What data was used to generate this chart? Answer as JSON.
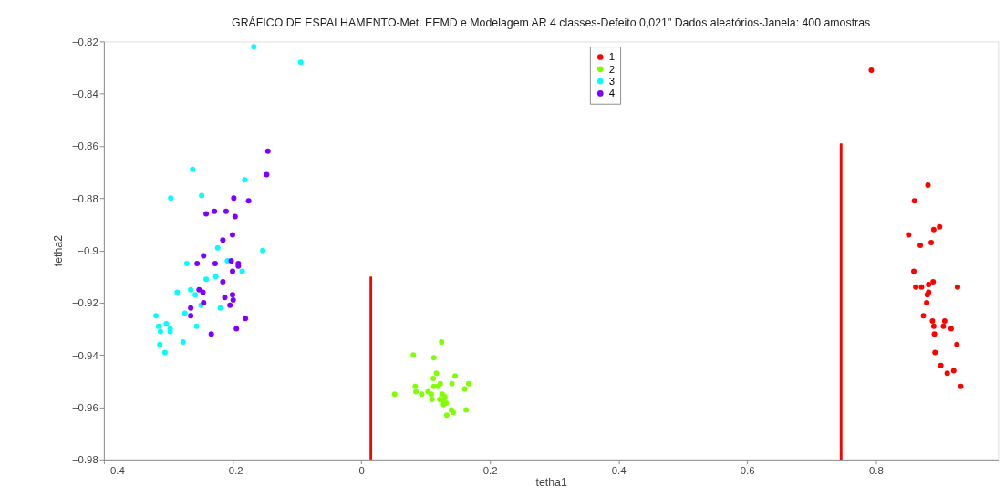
{
  "chart_data": {
    "type": "scatter",
    "title": "GRÁFICO DE ESPALHAMENTO-Met. EEMD e Modelagem AR 4 classes-Defeito 0,021\" Dados aleatórios-Janela: 400 amostras",
    "xlabel": "tetha1",
    "ylabel": "tetha2",
    "xlim": [
      -0.4,
      0.99
    ],
    "ylim": [
      -0.98,
      -0.82
    ],
    "xticks": [
      -0.4,
      -0.2,
      0,
      0.2,
      0.4,
      0.6,
      0.8
    ],
    "yticks": [
      -0.98,
      -0.96,
      -0.94,
      -0.92,
      -0.9,
      -0.88,
      -0.86,
      -0.84,
      -0.82
    ],
    "grid": false,
    "legend": "top",
    "marker": "circle",
    "series": [
      {
        "name": "1",
        "color": "#ff0000",
        "x": [
          0.793,
          0.881,
          0.86,
          0.851,
          0.899,
          0.89,
          0.886,
          0.869,
          0.859,
          0.862,
          0.871,
          0.882,
          0.889,
          0.882,
          0.88,
          0.927,
          0.879,
          0.874,
          0.888,
          0.907,
          0.89,
          0.905,
          0.917,
          0.891,
          0.926,
          0.892,
          0.901,
          0.911,
          0.921,
          0.932
        ],
        "values": [
          -0.831,
          -0.875,
          -0.881,
          -0.894,
          -0.891,
          -0.892,
          -0.897,
          -0.898,
          -0.908,
          -0.914,
          -0.914,
          -0.913,
          -0.912,
          -0.916,
          -0.917,
          -0.914,
          -0.92,
          -0.925,
          -0.927,
          -0.927,
          -0.929,
          -0.929,
          -0.93,
          -0.932,
          -0.936,
          -0.939,
          -0.944,
          -0.947,
          -0.946,
          -0.952
        ]
      },
      {
        "name": "2",
        "color": "#80ff00",
        "x": [
          0.125,
          0.081,
          0.113,
          0.117,
          0.146,
          0.112,
          0.123,
          0.119,
          0.141,
          0.167,
          0.084,
          0.113,
          0.085,
          0.161,
          0.052,
          0.094,
          0.104,
          0.109,
          0.126,
          0.13,
          0.122,
          0.11,
          0.128,
          0.132,
          0.128,
          0.14,
          0.143,
          0.163,
          0.133
        ],
        "values": [
          -0.935,
          -0.94,
          -0.941,
          -0.947,
          -0.948,
          -0.949,
          -0.951,
          -0.952,
          -0.951,
          -0.951,
          -0.952,
          -0.952,
          -0.954,
          -0.953,
          -0.955,
          -0.955,
          -0.954,
          -0.955,
          -0.955,
          -0.956,
          -0.957,
          -0.957,
          -0.9577,
          -0.9584,
          -0.959,
          -0.961,
          -0.962,
          -0.961,
          -0.963
        ]
      },
      {
        "name": "3",
        "color": "#00ffff",
        "x": [
          -0.262,
          -0.181,
          -0.296,
          -0.248,
          -0.223,
          -0.153,
          -0.271,
          -0.208,
          -0.185,
          -0.241,
          -0.226,
          -0.286,
          -0.265,
          -0.258,
          -0.249,
          -0.219,
          -0.274,
          -0.319,
          -0.303,
          -0.315,
          -0.297,
          -0.312,
          -0.297,
          -0.256,
          -0.277,
          -0.313,
          -0.305,
          -0.167,
          -0.094
        ],
        "values": [
          -0.869,
          -0.873,
          -0.88,
          -0.879,
          -0.899,
          -0.9,
          -0.905,
          -0.904,
          -0.908,
          -0.911,
          -0.91,
          -0.916,
          -0.915,
          -0.917,
          -0.921,
          -0.922,
          -0.924,
          -0.925,
          -0.928,
          -0.929,
          -0.93,
          -0.931,
          -0.931,
          -0.929,
          -0.935,
          -0.936,
          -0.939,
          -0.822,
          -0.828
        ]
      },
      {
        "name": "4",
        "color": "#8000ff",
        "x": [
          -0.145,
          -0.147,
          -0.198,
          -0.175,
          -0.241,
          -0.228,
          -0.21,
          -0.196,
          -0.2,
          -0.215,
          -0.245,
          -0.255,
          -0.227,
          -0.202,
          -0.191,
          -0.191,
          -0.2,
          -0.215,
          -0.252,
          -0.246,
          -0.2,
          -0.212,
          -0.199,
          -0.245,
          -0.204,
          -0.265,
          -0.265,
          -0.18,
          -0.194,
          -0.233
        ],
        "values": [
          -0.862,
          -0.871,
          -0.88,
          -0.881,
          -0.886,
          -0.885,
          -0.885,
          -0.887,
          -0.894,
          -0.896,
          -0.902,
          -0.905,
          -0.905,
          -0.904,
          -0.905,
          -0.906,
          -0.908,
          -0.912,
          -0.915,
          -0.916,
          -0.917,
          -0.918,
          -0.919,
          -0.92,
          -0.921,
          -0.922,
          -0.925,
          -0.926,
          -0.93,
          -0.932
        ]
      },
      {
        "type": "line",
        "marker": "none",
        "color": "#ff0000",
        "x": [
          0.015,
          0.015
        ],
        "values": [
          -0.98,
          -0.91
        ]
      },
      {
        "type": "line",
        "marker": "none",
        "color": "#ff0000",
        "x": [
          0.746,
          0.746
        ],
        "values": [
          -0.98,
          -0.859
        ]
      }
    ]
  }
}
